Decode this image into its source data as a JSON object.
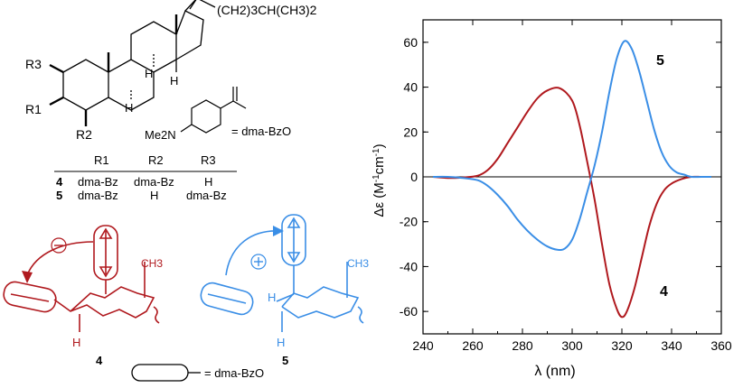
{
  "steroid": {
    "side_chain": "(CH2)3CH(CH3)2",
    "r_labels": [
      "R3",
      "R1",
      "R2"
    ],
    "dma_label": "= dma-BzO",
    "me2n": "Me2N"
  },
  "substituent_table": {
    "headers": [
      "R1",
      "R2",
      "R3"
    ],
    "rows": [
      {
        "compound": "4",
        "cells": [
          "dma-Bz",
          "dma-Bz",
          "H"
        ]
      },
      {
        "compound": "5",
        "cells": [
          "dma-Bz",
          "H",
          "dma-Bz"
        ]
      }
    ]
  },
  "conformers": {
    "left": {
      "label": "4",
      "sign": "⊖",
      "methyl": "CH3",
      "hydrogen": "H"
    },
    "right": {
      "label": "5",
      "sign": "⊕",
      "methyl": "CH3",
      "hydrogen": "H"
    }
  },
  "legend_key": {
    "text": "= dma-BzO"
  },
  "colors": {
    "compound_4": "#b0191e",
    "compound_5": "#3a8ee6"
  },
  "chart_data": {
    "type": "line",
    "xlabel": "λ (nm)",
    "ylabel": "Δε (M-1cm-1)",
    "xlim": [
      240,
      360
    ],
    "ylim": [
      -70,
      70
    ],
    "xticks": [
      240,
      260,
      280,
      300,
      320,
      340,
      360
    ],
    "yticks": [
      -60,
      -40,
      -20,
      0,
      20,
      40,
      60
    ],
    "grid": false,
    "series": [
      {
        "name": "4",
        "color": "#b0191e",
        "x": [
          244,
          250,
          256,
          262,
          266,
          270,
          274,
          278,
          282,
          286,
          290,
          295,
          300,
          303,
          306,
          309,
          312,
          315,
          318,
          320,
          322,
          325,
          328,
          331,
          334,
          337,
          340,
          344,
          348,
          352,
          356
        ],
        "y": [
          0,
          -0.5,
          -0.3,
          0.5,
          3,
          8,
          15,
          22,
          29,
          35,
          38.5,
          39.5,
          34,
          23,
          7,
          -10,
          -30,
          -48,
          -59,
          -62.5,
          -60,
          -50,
          -36,
          -22,
          -12,
          -6,
          -3,
          -1,
          0,
          0,
          0
        ]
      },
      {
        "name": "5",
        "color": "#3a8ee6",
        "x": [
          244,
          250,
          256,
          262,
          266,
          270,
          274,
          278,
          282,
          286,
          290,
          294,
          297,
          300,
          303,
          306,
          309,
          312,
          315,
          318,
          321,
          324,
          327,
          330,
          333,
          336,
          339,
          342,
          345,
          348,
          352,
          356
        ],
        "y": [
          0,
          0,
          -0.5,
          -1.5,
          -4,
          -8,
          -13,
          -19,
          -24,
          -28,
          -31,
          -32.5,
          -32,
          -28,
          -19,
          -7,
          5,
          20,
          38,
          53,
          60.5,
          57,
          47,
          34,
          21,
          11,
          5,
          2,
          1,
          0,
          0,
          0
        ]
      }
    ]
  }
}
